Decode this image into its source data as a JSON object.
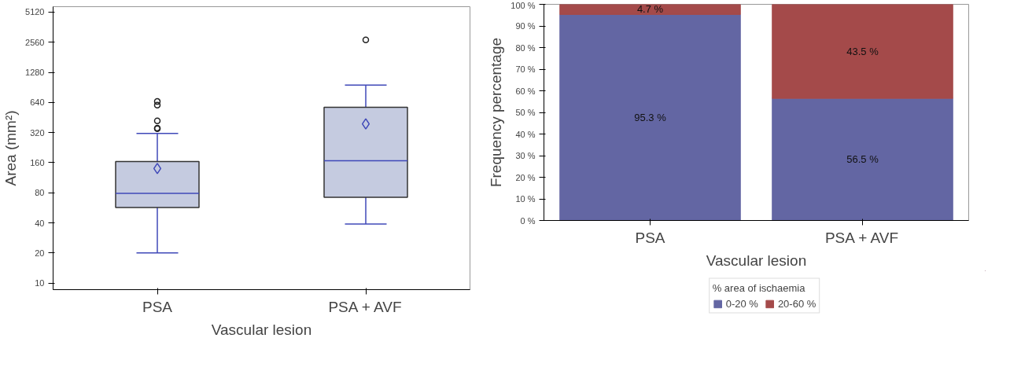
{
  "chart_data": [
    {
      "type": "box",
      "xlabel": "Vascular lesion",
      "ylabel": "Area (mm²)",
      "categories": [
        "PSA",
        "PSA + AVF"
      ],
      "log": true,
      "grid": false,
      "ylim": [
        8.6,
        5800
      ],
      "yticks": [
        10,
        20,
        40,
        80,
        160,
        320,
        640,
        1280,
        2560,
        5120
      ],
      "color": "#c5cbe0",
      "boxes": [
        {
          "low": 20,
          "q1": 57,
          "median": 79,
          "q3": 164,
          "high": 314,
          "mean": 140,
          "outliers": [
            654,
            601,
            419,
            355,
            350
          ]
        },
        {
          "low": 39,
          "q1": 72,
          "median": 167,
          "q3": 573,
          "high": 952,
          "mean": 390,
          "outliers": [
            2700
          ]
        }
      ]
    },
    {
      "type": "bar",
      "stacked": true,
      "xlabel": "Vascular lesion",
      "ylabel": "Frequency percentage",
      "legend_title": "% area of ischaemia",
      "legend": "bottom",
      "grid": false,
      "categories": [
        "PSA",
        "PSA + AVF"
      ],
      "ylim": [
        0,
        100
      ],
      "yticks": [
        {
          "value": 0,
          "label": "0 %"
        },
        {
          "value": 10,
          "label": "10 %"
        },
        {
          "value": 20,
          "label": "20 %"
        },
        {
          "value": 30,
          "label": "30 %"
        },
        {
          "value": 40,
          "label": "40 %"
        },
        {
          "value": 50,
          "label": "50 %"
        },
        {
          "value": 60,
          "label": "60 %"
        },
        {
          "value": 70,
          "label": "70 %"
        },
        {
          "value": 80,
          "label": "80 %"
        },
        {
          "value": 90,
          "label": "90 %"
        },
        {
          "value": 100,
          "label": "100 %"
        }
      ],
      "series": [
        {
          "name": "0-20 %",
          "color": "#6366a3",
          "values": [
            95.3,
            56.5
          ],
          "value_labels": [
            "95.3 %",
            "56.5 %"
          ]
        },
        {
          "name": "20-60 %",
          "color": "#a44a4a",
          "values": [
            4.7,
            43.5
          ],
          "value_labels": [
            "4.7 %",
            "43.5 %"
          ]
        }
      ]
    }
  ]
}
